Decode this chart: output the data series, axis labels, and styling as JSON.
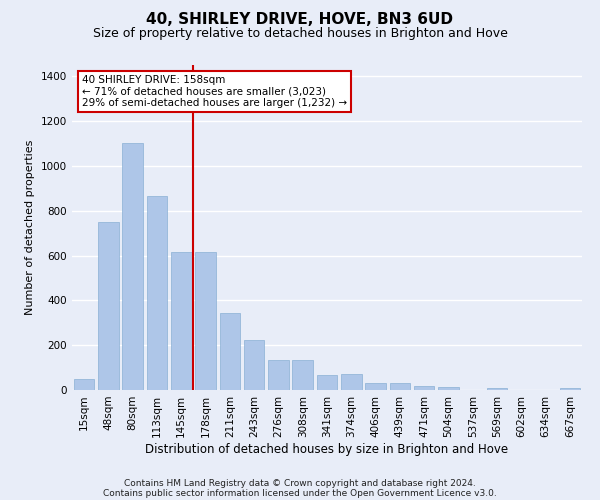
{
  "title1": "40, SHIRLEY DRIVE, HOVE, BN3 6UD",
  "title2": "Size of property relative to detached houses in Brighton and Hove",
  "xlabel": "Distribution of detached houses by size in Brighton and Hove",
  "ylabel": "Number of detached properties",
  "categories": [
    "15sqm",
    "48sqm",
    "80sqm",
    "113sqm",
    "145sqm",
    "178sqm",
    "211sqm",
    "243sqm",
    "276sqm",
    "308sqm",
    "341sqm",
    "374sqm",
    "406sqm",
    "439sqm",
    "471sqm",
    "504sqm",
    "537sqm",
    "569sqm",
    "602sqm",
    "634sqm",
    "667sqm"
  ],
  "values": [
    50,
    750,
    1100,
    865,
    615,
    615,
    345,
    225,
    135,
    135,
    65,
    70,
    30,
    30,
    20,
    15,
    0,
    10,
    0,
    0,
    10
  ],
  "bar_color": "#aec6e8",
  "bar_edge_color": "#8ab0d4",
  "vline_x": 4.5,
  "vline_color": "#cc0000",
  "annotation_text": "40 SHIRLEY DRIVE: 158sqm\n← 71% of detached houses are smaller (3,023)\n29% of semi-detached houses are larger (1,232) →",
  "annotation_box_color": "#ffffff",
  "annotation_box_edge": "#cc0000",
  "footnote1": "Contains HM Land Registry data © Crown copyright and database right 2024.",
  "footnote2": "Contains public sector information licensed under the Open Government Licence v3.0.",
  "ylim": [
    0,
    1450
  ],
  "background_color": "#e8edf8",
  "plot_bg_color": "#e8edf8",
  "grid_color": "#ffffff",
  "title1_fontsize": 11,
  "title2_fontsize": 9,
  "xlabel_fontsize": 8.5,
  "ylabel_fontsize": 8,
  "tick_fontsize": 7.5,
  "annot_fontsize": 7.5
}
